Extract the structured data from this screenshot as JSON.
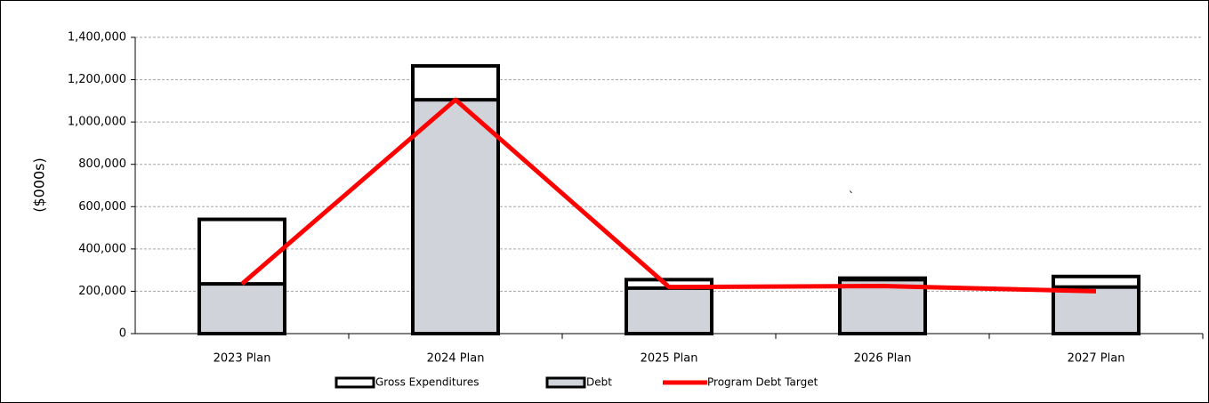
{
  "chart_data": {
    "type": "bar",
    "y_label": "($000s)",
    "annotation": "`",
    "categories": [
      "2023 Plan",
      "2024 Plan",
      "2025 Plan",
      "2026 Plan",
      "2027 Plan"
    ],
    "series": [
      {
        "name": "Gross Expenditures",
        "type": "bar",
        "color": "#ffffff",
        "values": [
          540000,
          1265000,
          255000,
          262000,
          270000
        ]
      },
      {
        "name": "Debt",
        "type": "bar",
        "color": "#d1d3db",
        "values": [
          235000,
          1105000,
          215000,
          255000,
          220000
        ]
      },
      {
        "name": "Program Debt Target",
        "type": "line",
        "color": "#ff0000",
        "values": [
          235000,
          1105000,
          220000,
          225000,
          200000
        ]
      }
    ],
    "ylim": [
      0,
      1400000
    ],
    "yticks": [
      0,
      {
        "value": 200000,
        "label": "200,000"
      },
      {
        "value": 400000,
        "label": "400,000"
      },
      {
        "value": 600000,
        "label": "600,000"
      },
      {
        "value": 800000,
        "label": "800,000"
      },
      {
        "value": 1000000,
        "label": "1,000,000"
      },
      {
        "value": 1200000,
        "label": "1,200,000"
      },
      {
        "value": 1400000,
        "label": "1,400,000"
      }
    ],
    "grid": true
  }
}
